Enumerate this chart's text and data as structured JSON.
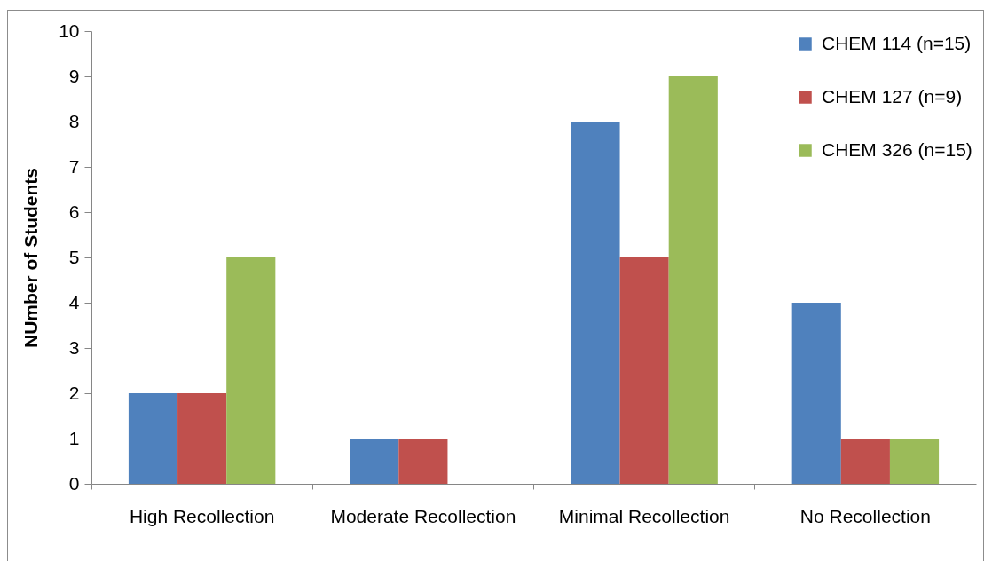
{
  "chart_data": {
    "type": "bar",
    "ylabel": "NUmber of Students",
    "categories": [
      "High Recollection",
      "Moderate Recollection",
      "Minimal Recollection",
      "No Recollection"
    ],
    "series": [
      {
        "name": "CHEM 114 (n=15)",
        "color": "#4f81bd",
        "values": [
          2,
          1,
          8,
          4
        ]
      },
      {
        "name": "CHEM 127 (n=9)",
        "color": "#c0504d",
        "values": [
          2,
          1,
          5,
          1
        ]
      },
      {
        "name": "CHEM 326 (n=15)",
        "color": "#9bbb59",
        "values": [
          5,
          0,
          9,
          1
        ]
      }
    ],
    "ylim": [
      0,
      10
    ],
    "yticks": [
      0,
      1,
      2,
      3,
      4,
      5,
      6,
      7,
      8,
      9,
      10
    ],
    "grid": false,
    "legend": "top right"
  }
}
